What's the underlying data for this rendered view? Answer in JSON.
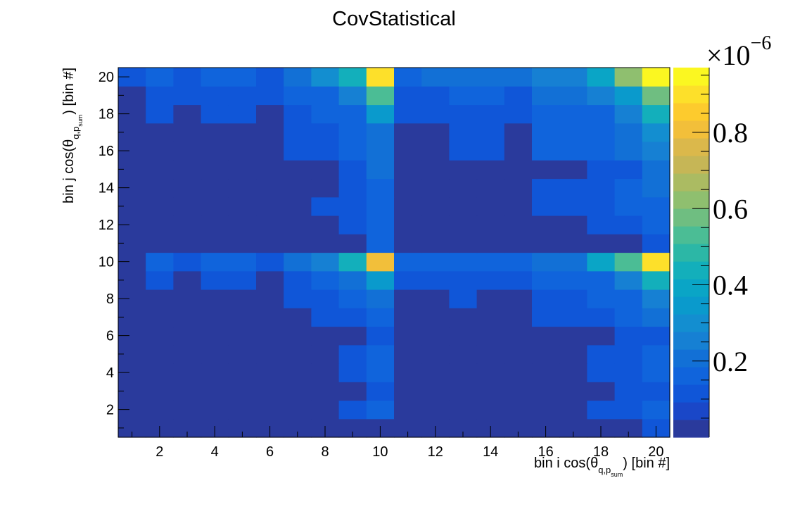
{
  "chart_data": {
    "type": "heatmap",
    "title": "CovStatistical",
    "xlabel": {
      "main": "bin i cos(θ",
      "sub": "q,p",
      "subsub": "sum",
      "tail": ") [bin #]"
    },
    "ylabel": {
      "main": "bin j cos(θ",
      "sub": "q,p",
      "subsub": "sum",
      "tail": ") [bin #]"
    },
    "x_range": [
      0.5,
      20.5
    ],
    "y_range": [
      0.5,
      20.5
    ],
    "x_ticks": [
      "2",
      "4",
      "6",
      "8",
      "10",
      "12",
      "14",
      "16",
      "18",
      "20"
    ],
    "y_ticks": [
      "2",
      "4",
      "6",
      "8",
      "10",
      "12",
      "14",
      "16",
      "18",
      "20"
    ],
    "z_range": [
      0.0,
      0.97
    ],
    "z_exponent_text": "×10",
    "z_exponent_power": "−6",
    "z_ticks": [
      "0.2",
      "0.4",
      "0.6",
      "0.8"
    ],
    "z_tick_values": [
      0.2,
      0.4,
      0.6,
      0.8
    ],
    "palette": [
      "#2a3a9c",
      "#1a47c8",
      "#1056d8",
      "#1064dc",
      "#1270d6",
      "#1680d3",
      "#138ed0",
      "#0a9acc",
      "#0aa5c6",
      "#13afbb",
      "#2cb7a6",
      "#4bbd95",
      "#6fbe81",
      "#8fbf6f",
      "#abbb62",
      "#c6b656",
      "#dbb84b",
      "#f2bf3a",
      "#fdcb2d",
      "#fde02a",
      "#fbf721"
    ],
    "values": [
      [
        0.02,
        0.02,
        0.02,
        0.02,
        0.02,
        0.02,
        0.02,
        0.02,
        0.02,
        0.02,
        0.02,
        0.02,
        0.02,
        0.02,
        0.02,
        0.02,
        0.02,
        0.02,
        0.02,
        0.1
      ],
      [
        0.02,
        0.02,
        0.02,
        0.02,
        0.02,
        0.02,
        0.02,
        0.02,
        0.1,
        0.15,
        0.02,
        0.02,
        0.02,
        0.02,
        0.02,
        0.02,
        0.02,
        0.1,
        0.1,
        0.16
      ],
      [
        0.02,
        0.02,
        0.02,
        0.02,
        0.02,
        0.02,
        0.02,
        0.02,
        0.02,
        0.1,
        0.02,
        0.02,
        0.02,
        0.02,
        0.02,
        0.02,
        0.02,
        0.02,
        0.1,
        0.1
      ],
      [
        0.02,
        0.02,
        0.02,
        0.02,
        0.02,
        0.02,
        0.02,
        0.02,
        0.1,
        0.14,
        0.02,
        0.02,
        0.02,
        0.02,
        0.02,
        0.02,
        0.02,
        0.1,
        0.1,
        0.15
      ],
      [
        0.02,
        0.02,
        0.02,
        0.02,
        0.02,
        0.02,
        0.02,
        0.02,
        0.1,
        0.14,
        0.02,
        0.02,
        0.02,
        0.02,
        0.02,
        0.02,
        0.02,
        0.1,
        0.1,
        0.15
      ],
      [
        0.02,
        0.02,
        0.02,
        0.02,
        0.02,
        0.02,
        0.02,
        0.02,
        0.02,
        0.1,
        0.02,
        0.02,
        0.02,
        0.02,
        0.02,
        0.02,
        0.02,
        0.02,
        0.1,
        0.1
      ],
      [
        0.02,
        0.02,
        0.02,
        0.02,
        0.02,
        0.02,
        0.02,
        0.1,
        0.1,
        0.16,
        0.02,
        0.02,
        0.02,
        0.02,
        0.02,
        0.1,
        0.1,
        0.1,
        0.15,
        0.2
      ],
      [
        0.02,
        0.02,
        0.02,
        0.02,
        0.02,
        0.02,
        0.1,
        0.1,
        0.15,
        0.22,
        0.02,
        0.02,
        0.1,
        0.02,
        0.02,
        0.1,
        0.1,
        0.15,
        0.18,
        0.26
      ],
      [
        0.02,
        0.1,
        0.02,
        0.1,
        0.1,
        0.02,
        0.1,
        0.15,
        0.2,
        0.35,
        0.1,
        0.1,
        0.1,
        0.1,
        0.1,
        0.14,
        0.14,
        0.18,
        0.26,
        0.42
      ],
      [
        0.02,
        0.14,
        0.1,
        0.16,
        0.16,
        0.1,
        0.2,
        0.25,
        0.42,
        0.8,
        0.14,
        0.14,
        0.18,
        0.18,
        0.18,
        0.2,
        0.2,
        0.4,
        0.55,
        0.92
      ],
      [
        0.02,
        0.02,
        0.02,
        0.02,
        0.02,
        0.02,
        0.02,
        0.02,
        0.02,
        0.14,
        0.02,
        0.02,
        0.02,
        0.02,
        0.02,
        0.02,
        0.02,
        0.02,
        0.02,
        0.12
      ],
      [
        0.02,
        0.02,
        0.02,
        0.02,
        0.02,
        0.02,
        0.02,
        0.02,
        0.1,
        0.15,
        0.02,
        0.02,
        0.02,
        0.02,
        0.02,
        0.02,
        0.02,
        0.1,
        0.1,
        0.15
      ],
      [
        0.02,
        0.02,
        0.02,
        0.02,
        0.02,
        0.02,
        0.02,
        0.1,
        0.1,
        0.18,
        0.02,
        0.02,
        0.02,
        0.02,
        0.02,
        0.1,
        0.1,
        0.1,
        0.14,
        0.18
      ],
      [
        0.02,
        0.02,
        0.02,
        0.02,
        0.02,
        0.02,
        0.02,
        0.02,
        0.1,
        0.18,
        0.02,
        0.02,
        0.02,
        0.02,
        0.02,
        0.1,
        0.1,
        0.1,
        0.14,
        0.2
      ],
      [
        0.02,
        0.02,
        0.02,
        0.02,
        0.02,
        0.02,
        0.02,
        0.02,
        0.1,
        0.2,
        0.02,
        0.02,
        0.02,
        0.02,
        0.02,
        0.02,
        0.02,
        0.1,
        0.1,
        0.2
      ],
      [
        0.02,
        0.02,
        0.02,
        0.02,
        0.02,
        0.02,
        0.1,
        0.1,
        0.14,
        0.2,
        0.02,
        0.02,
        0.1,
        0.1,
        0.02,
        0.14,
        0.14,
        0.16,
        0.2,
        0.26
      ],
      [
        0.02,
        0.02,
        0.02,
        0.02,
        0.02,
        0.02,
        0.1,
        0.1,
        0.14,
        0.22,
        0.02,
        0.02,
        0.1,
        0.1,
        0.02,
        0.14,
        0.14,
        0.16,
        0.2,
        0.28
      ],
      [
        0.02,
        0.1,
        0.02,
        0.1,
        0.1,
        0.02,
        0.1,
        0.14,
        0.18,
        0.36,
        0.1,
        0.1,
        0.1,
        0.1,
        0.1,
        0.14,
        0.14,
        0.18,
        0.26,
        0.42
      ],
      [
        0.02,
        0.1,
        0.1,
        0.1,
        0.1,
        0.1,
        0.14,
        0.18,
        0.26,
        0.52,
        0.1,
        0.1,
        0.14,
        0.14,
        0.1,
        0.2,
        0.2,
        0.26,
        0.34,
        0.6
      ],
      [
        0.1,
        0.16,
        0.1,
        0.16,
        0.16,
        0.1,
        0.2,
        0.3,
        0.45,
        0.9,
        0.16,
        0.2,
        0.2,
        0.2,
        0.2,
        0.26,
        0.26,
        0.4,
        0.62,
        0.97
      ]
    ]
  }
}
